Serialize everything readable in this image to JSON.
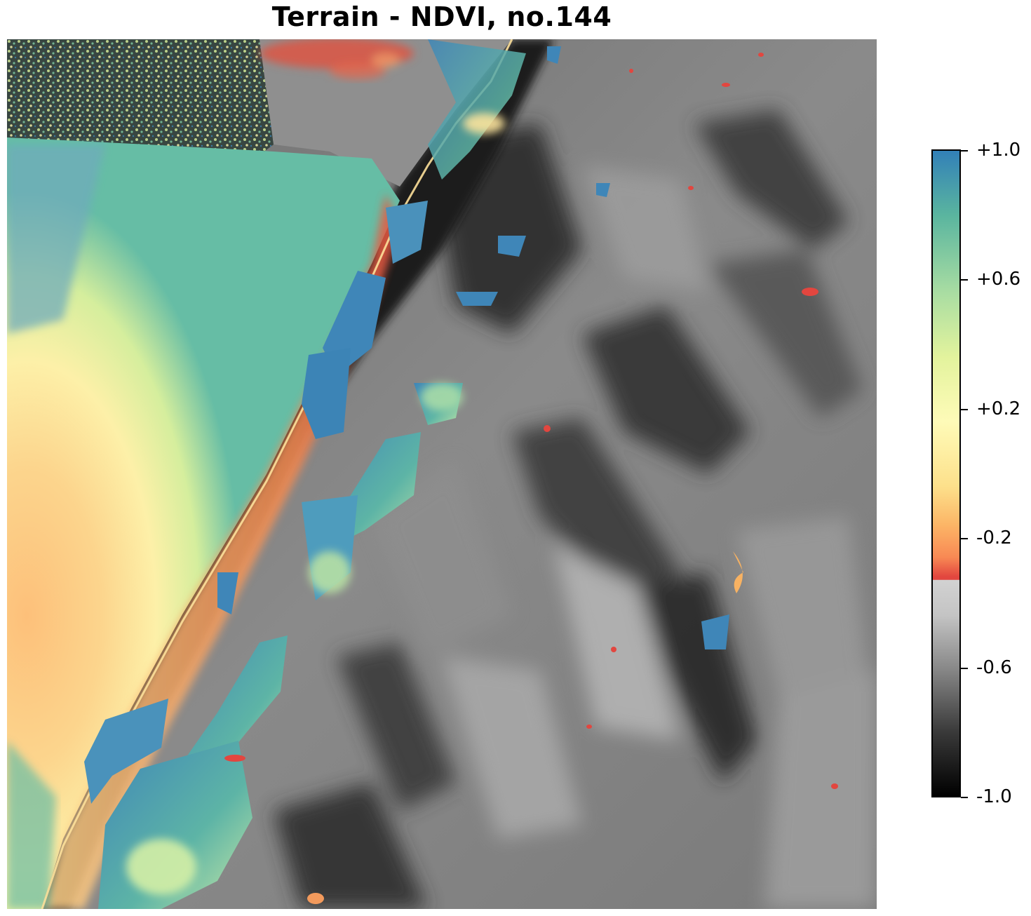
{
  "title": "Terrain - NDVI, no.144",
  "colorbar": {
    "min": -1.0,
    "max": 1.0,
    "threshold": -0.3,
    "ticks": [
      {
        "value": 1.0,
        "label": "+1.0"
      },
      {
        "value": 0.6,
        "label": "+0.6"
      },
      {
        "value": 0.2,
        "label": "+0.2"
      },
      {
        "value": -0.2,
        "label": "-0.2"
      },
      {
        "value": -0.6,
        "label": "-0.6"
      },
      {
        "value": -1.0,
        "label": "-1.0"
      }
    ],
    "low_colormap": "gray",
    "high_colormap": "Spectral",
    "colors": {
      "vegetation_blue": "#3a7fb6",
      "teal": "#5ab59f",
      "light_green": "#c3e59f",
      "pale_yellow": "#fbf7b6",
      "orange": "#f9a25f",
      "red": "#e2463f",
      "gray_light": "#cfcfcf",
      "gray_dark": "#3a3a3a",
      "black": "#000000"
    }
  }
}
